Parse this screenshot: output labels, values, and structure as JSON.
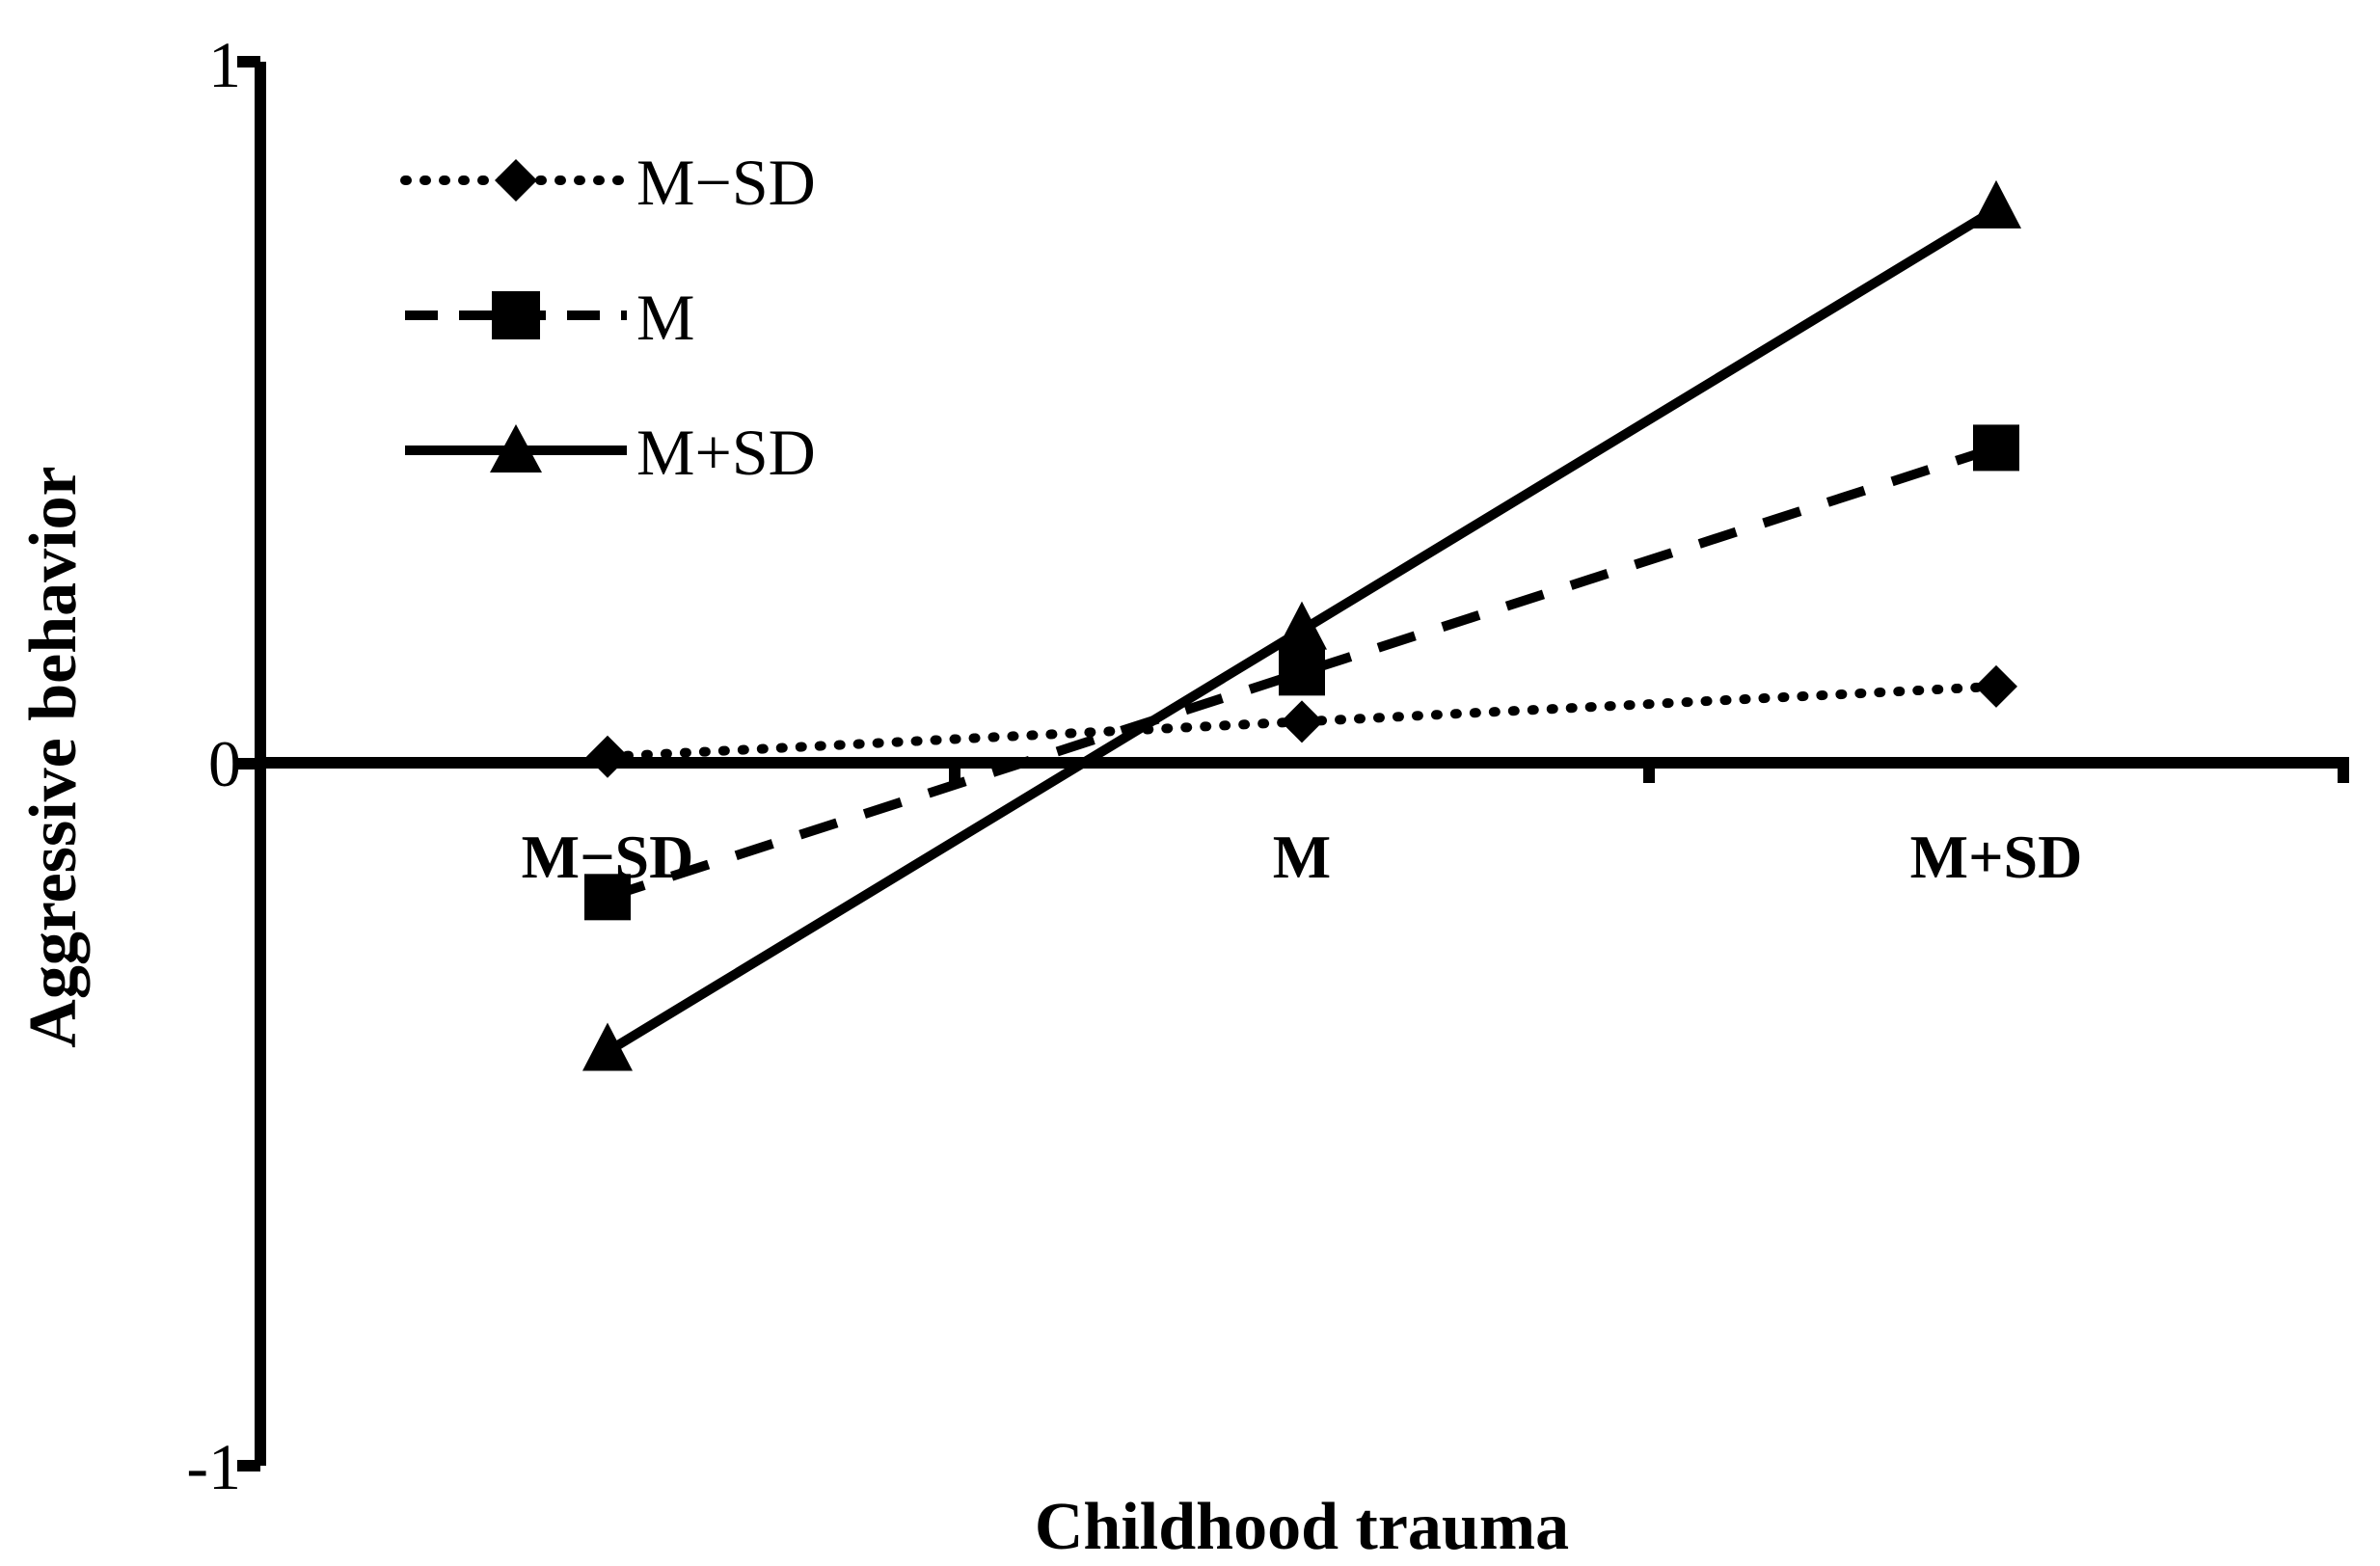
{
  "chart_data": {
    "type": "line",
    "title": "",
    "xlabel": "Childhood trauma",
    "ylabel": "Aggressive behavior",
    "categories": [
      "M−SD",
      "M",
      "M+SD"
    ],
    "ylim": [
      -1,
      1
    ],
    "yticks": [
      "1",
      "0",
      "-1"
    ],
    "legend_position": "top-left",
    "grid": false,
    "series": [
      {
        "name": "M−SD",
        "values": [
          0.01,
          0.06,
          0.11
        ],
        "line_style": "dotted",
        "marker": "diamond"
      },
      {
        "name": "M",
        "values": [
          -0.19,
          0.13,
          0.45
        ],
        "line_style": "dashed",
        "marker": "square"
      },
      {
        "name": "M+SD",
        "values": [
          -0.41,
          0.19,
          0.79
        ],
        "line_style": "solid",
        "marker": "triangle"
      }
    ]
  }
}
